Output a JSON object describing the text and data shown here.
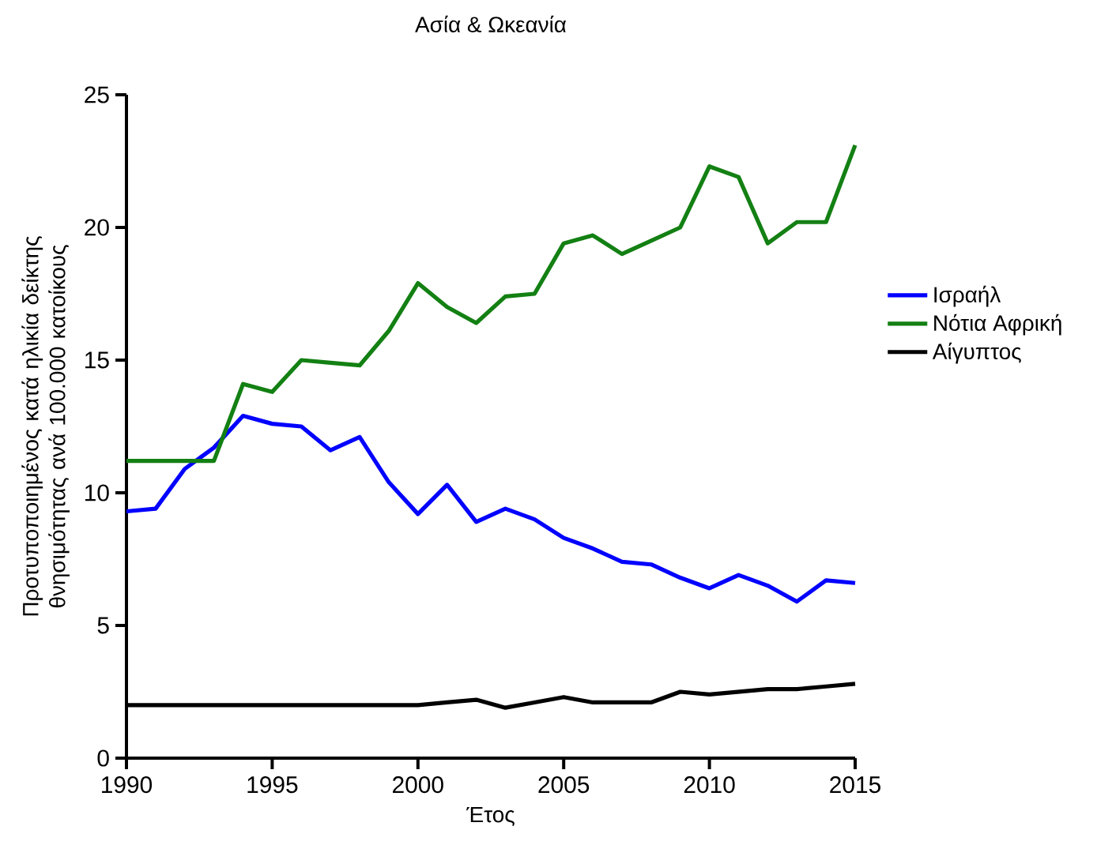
{
  "chart_data": {
    "type": "line",
    "title": "Ασία & Ωκεανία",
    "xlabel": "Έτος",
    "ylabel": "Προτυποποιημένος κατά ηλικία δείκτης θνησιμότητας ανά 100.000 κατοίκους",
    "x": [
      1990,
      1991,
      1992,
      1993,
      1994,
      1995,
      1996,
      1997,
      1998,
      1999,
      2000,
      2001,
      2002,
      2003,
      2004,
      2005,
      2006,
      2007,
      2008,
      2009,
      2010,
      2011,
      2012,
      2013,
      2014,
      2015
    ],
    "series": [
      {
        "name": "Ισραήλ",
        "color": "#0000ff",
        "values": [
          9.3,
          9.4,
          10.9,
          11.7,
          12.9,
          12.6,
          12.5,
          11.6,
          12.1,
          10.4,
          9.2,
          10.3,
          8.9,
          9.4,
          9.0,
          8.3,
          7.9,
          7.4,
          7.3,
          6.8,
          6.4,
          6.9,
          6.5,
          5.9,
          6.7,
          6.6
        ]
      },
      {
        "name": "Νότια Αφρική",
        "color": "#138013",
        "values": [
          11.2,
          11.2,
          11.2,
          11.2,
          14.1,
          13.8,
          15.0,
          14.9,
          14.8,
          16.1,
          17.9,
          17.0,
          16.4,
          17.4,
          17.5,
          19.4,
          19.7,
          19.0,
          19.5,
          20.0,
          22.3,
          21.9,
          19.4,
          20.2,
          20.2,
          23.1
        ]
      },
      {
        "name": "Αίγυπτος",
        "color": "#000000",
        "values": [
          2.0,
          2.0,
          2.0,
          2.0,
          2.0,
          2.0,
          2.0,
          2.0,
          2.0,
          2.0,
          2.0,
          2.1,
          2.2,
          1.9,
          2.1,
          2.3,
          2.1,
          2.1,
          2.1,
          2.5,
          2.4,
          2.5,
          2.6,
          2.6,
          2.7,
          2.8
        ]
      }
    ],
    "xlim": [
      1990,
      2015
    ],
    "ylim": [
      0,
      25
    ],
    "xticks": [
      1990,
      1995,
      2000,
      2005,
      2010,
      2015
    ],
    "yticks": [
      0,
      5,
      10,
      15,
      20,
      25
    ],
    "legend": "right",
    "marker": "none",
    "line_style": "solid"
  }
}
